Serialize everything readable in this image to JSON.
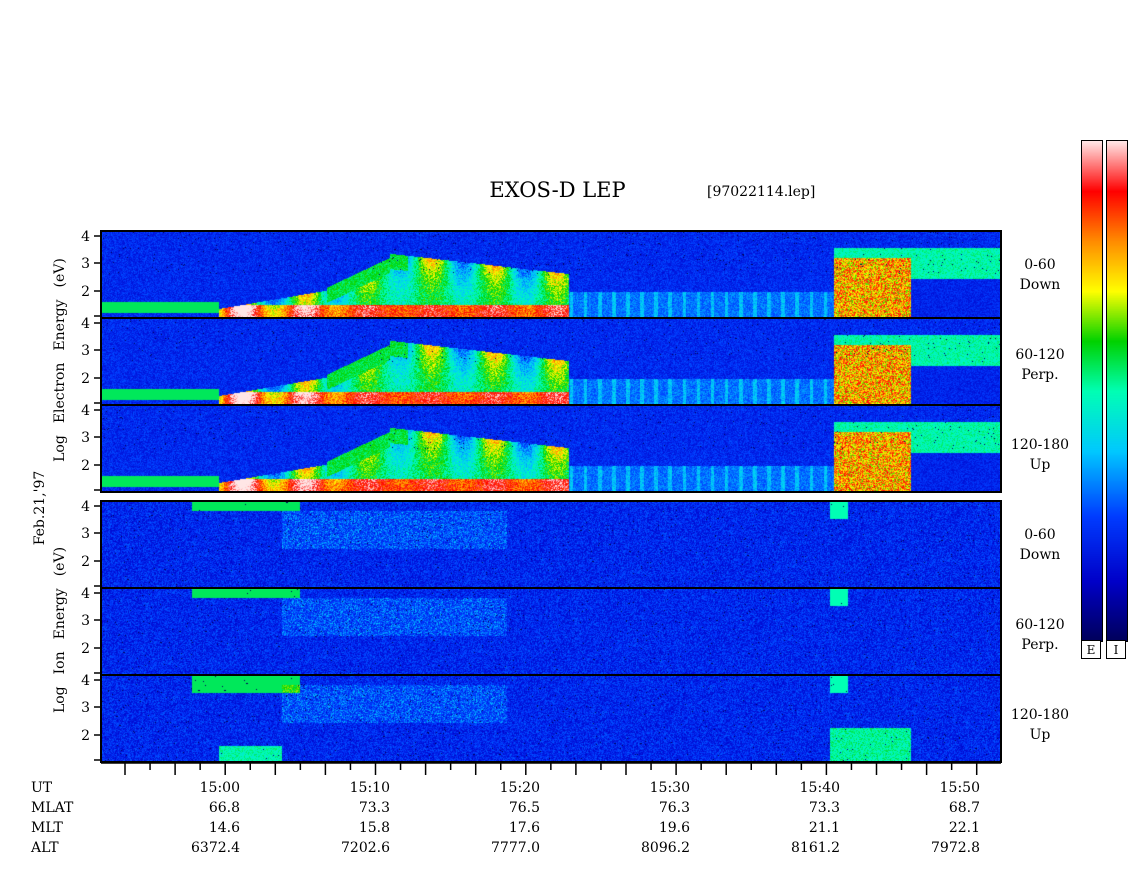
{
  "title": "EXOS-D LEP",
  "file_label": "[97022114.lep]",
  "date_label": "Feb.21,'97",
  "electron_ylabel": [
    "Log",
    "Electron",
    "Energy",
    "(eV)"
  ],
  "ion_ylabel": [
    "Log",
    "Ion",
    "Energy",
    "(eV)"
  ],
  "panels": [
    {
      "pitch": "0-60",
      "dir": "Down"
    },
    {
      "pitch": "60-120",
      "dir": "Perp."
    },
    {
      "pitch": "120-180",
      "dir": "Up"
    },
    {
      "pitch": "0-60",
      "dir": "Down"
    },
    {
      "pitch": "60-120",
      "dir": "Perp."
    },
    {
      "pitch": "120-180",
      "dir": "Up"
    }
  ],
  "colorbar_labels": [
    "E",
    "I"
  ],
  "colors": [
    "#ffffff",
    "#ff0000",
    "#ff8000",
    "#ffff00",
    "#00cc00",
    "#00ffff",
    "#0000ff",
    "#000080"
  ],
  "ephemeris": {
    "row_labels": [
      "UT",
      "MLAT",
      "MLT",
      "ALT"
    ],
    "ut": [
      "15:00",
      "15:10",
      "15:20",
      "15:30",
      "15:40",
      "15:50"
    ],
    "mlat": [
      "66.8",
      "73.3",
      "76.5",
      "76.3",
      "73.3",
      "68.7"
    ],
    "mlt": [
      "14.6",
      "15.8",
      "17.6",
      "19.6",
      "21.1",
      "22.1"
    ],
    "alt": [
      "6372.4",
      "7202.6",
      "7777.0",
      "8096.2",
      "8161.2",
      "7972.8"
    ]
  },
  "chart_data": {
    "type": "heatmap",
    "title": "EXOS-D LEP",
    "x_axis": "UT",
    "xlim": [
      "14:52",
      "15:52"
    ],
    "y_ticks": [
      2,
      3,
      4
    ],
    "ylim": [
      1,
      4
    ],
    "panel_groups": [
      "Electron",
      "Ion"
    ]
  }
}
